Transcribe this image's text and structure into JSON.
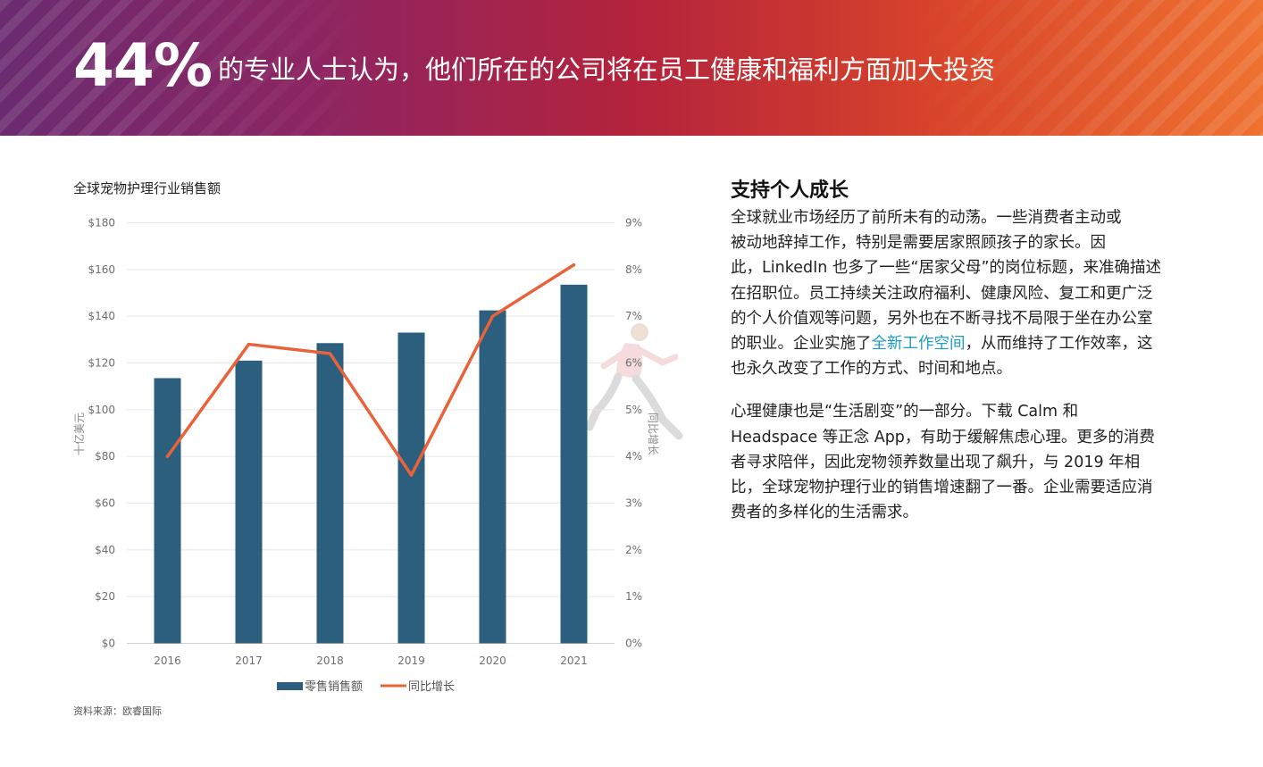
{
  "banner": {
    "stat": "44%",
    "text": "的专业人士认为，他们所在的公司将在员工健康和福利方面加大投资"
  },
  "chart_data": {
    "type": "bar",
    "title": "全球宠物护理行业销售额",
    "categories": [
      "2016",
      "2017",
      "2018",
      "2019",
      "2020",
      "2021"
    ],
    "series": [
      {
        "name": "零售销售额",
        "type": "bar",
        "axis": "left",
        "color": "#2b5f7d",
        "values": [
          113.5,
          121,
          128.5,
          133,
          142.5,
          153.5
        ]
      },
      {
        "name": "同比增长",
        "type": "line",
        "axis": "right",
        "color": "#e8633a",
        "values": [
          4.0,
          6.4,
          6.2,
          3.6,
          7.0,
          8.1
        ]
      }
    ],
    "y_left": {
      "label": "十亿美元",
      "range": [
        0,
        180
      ],
      "ticks": [
        "$0",
        "$20",
        "$40",
        "$60",
        "$80",
        "$100",
        "$120",
        "$140",
        "$160",
        "$180"
      ]
    },
    "y_right": {
      "label": "同比增长",
      "range": [
        0,
        9
      ],
      "ticks": [
        "0%",
        "1%",
        "2%",
        "3%",
        "4%",
        "5%",
        "6%",
        "7%",
        "8%",
        "9%"
      ]
    },
    "grid": "horizontal",
    "legend": "bottom"
  },
  "source": "资料来源：欧睿国际",
  "article": {
    "heading": "支持个人成长",
    "lines1": [
      "全球就业市场经历了前所未有的动荡。一些消费者主动或",
      "被动地辞掉工作，特别是需要居家照顾孩子的家长。因",
      "此，LinkedIn 也多了一些“居家父母”的岗位标题，来准确描述",
      "在招职位。员工持续关注政府福利、健康风险、复工和更广泛",
      "的个人价值观等问题，另外也在不断寻找不局限于坐在办公室"
    ],
    "line6_before": "的职业。企业实施了",
    "line6_link": "全新工作空间",
    "line6_after": "，从而维持了工作效率，这",
    "line7": "也永久改变了工作的方式、时间和地点。",
    "lines2": [
      "心理健康也是“生活剧变”的一部分。下载 Calm 和",
      "Headspace 等正念 App，有助于缓解焦虑心理。更多的消费",
      "者寻求陪伴，因此宠物领养数量出现了飙升，与 2019 年相",
      "比，全球宠物护理行业的销售增速翻了一番。企业需要适应消",
      "费者的多样化的生活需求。"
    ]
  }
}
